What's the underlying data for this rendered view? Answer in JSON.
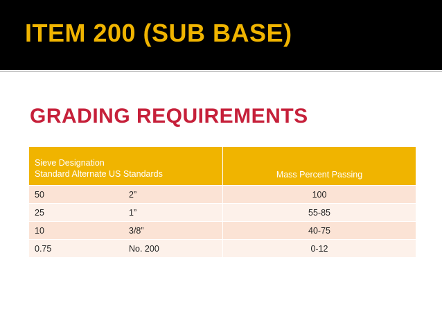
{
  "slide": {
    "title": "ITEM 200 (SUB BASE)",
    "subtitle": "GRADING REQUIREMENTS"
  },
  "table": {
    "header": {
      "col1_line1": "Sieve Designation",
      "col1_line2": "Standard Alternate US Standards",
      "col2": "Mass Percent Passing"
    },
    "rows": [
      {
        "standard": "50",
        "alternate": "2”",
        "passing": "100"
      },
      {
        "standard": "25",
        "alternate": "1”",
        "passing": "55-85"
      },
      {
        "standard": "10",
        "alternate": "3/8”",
        "passing": "40-75"
      },
      {
        "standard": "0.75",
        "alternate": "No. 200",
        "passing": "0-12"
      }
    ]
  },
  "colors": {
    "title_bar": "#000000",
    "title_text": "#f0b400",
    "subtitle_text": "#c6203a",
    "table_header": "#f0b400",
    "row_odd": "#fbe3d5",
    "row_even": "#fdf1ea"
  }
}
